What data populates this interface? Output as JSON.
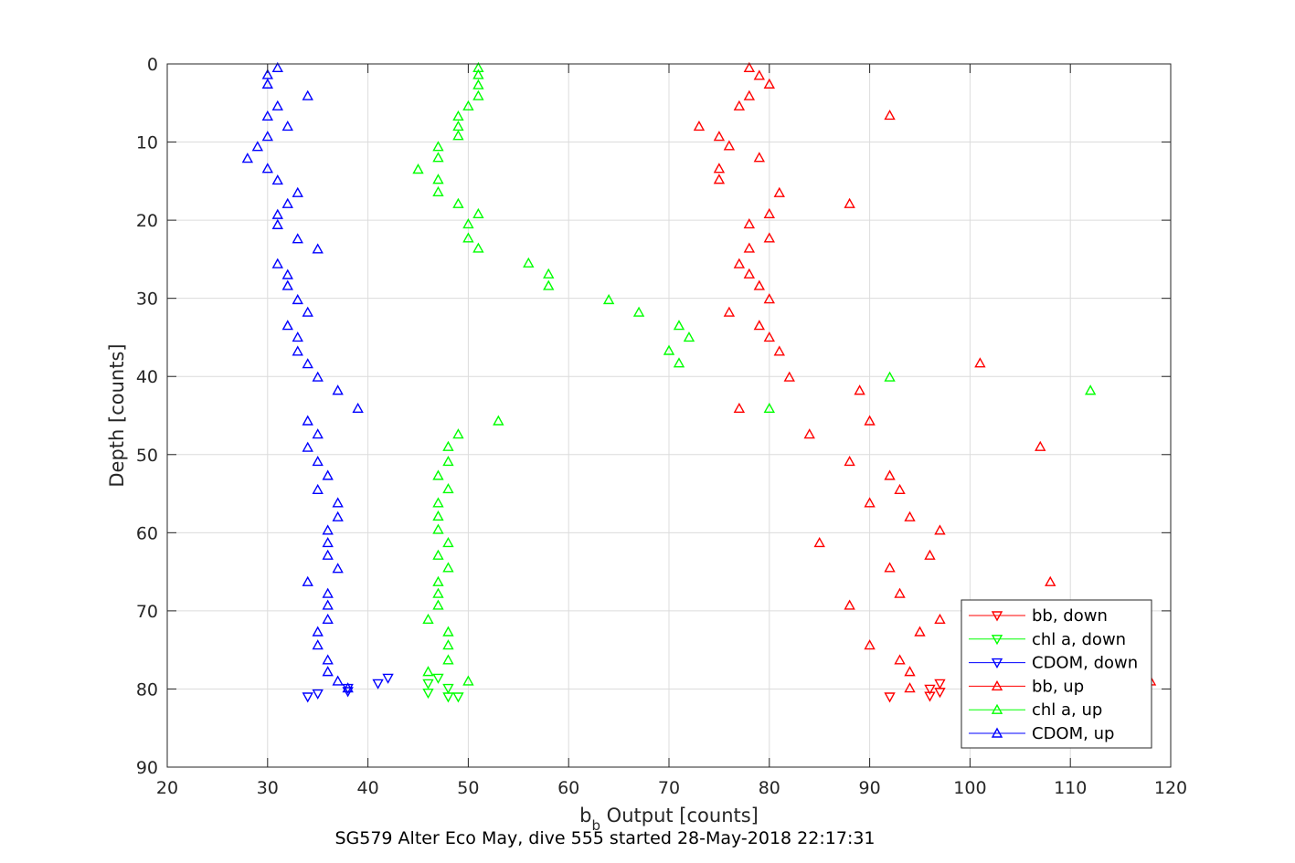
{
  "chart_data": {
    "type": "scatter",
    "xlabel_base": "b",
    "xlabel_sub": "b",
    "xlabel_rest": " Output [counts]",
    "ylabel": "Depth [counts]",
    "caption": "SG579 Alter Eco May, dive 555 started 28-May-2018 22:17:31",
    "xlim": [
      20,
      120
    ],
    "ylim": [
      0,
      90
    ],
    "y_reversed": true,
    "grid": true,
    "legend_position": "bottom-right",
    "x_ticks": [
      "20",
      "30",
      "40",
      "50",
      "60",
      "70",
      "80",
      "90",
      "100",
      "110",
      "120"
    ],
    "y_ticks": [
      "0",
      "10",
      "20",
      "30",
      "40",
      "50",
      "60",
      "70",
      "80",
      "90"
    ],
    "series": [
      {
        "name": "bb, down",
        "color": "#ff0000",
        "marker": "triangle-down",
        "points": [
          [
            96,
            80
          ],
          [
            97,
            79.3
          ],
          [
            97,
            80.4
          ],
          [
            96,
            80.9
          ],
          [
            92,
            81
          ]
        ]
      },
      {
        "name": "chl a, down",
        "color": "#00ff00",
        "marker": "triangle-down",
        "points": [
          [
            47,
            78.6
          ],
          [
            46,
            79.3
          ],
          [
            48,
            79.9
          ],
          [
            46,
            80.5
          ],
          [
            48,
            81
          ],
          [
            49,
            81
          ]
        ]
      },
      {
        "name": "CDOM, down",
        "color": "#0000ff",
        "marker": "triangle-down",
        "points": [
          [
            42,
            78.6
          ],
          [
            41,
            79.3
          ],
          [
            38,
            79.9
          ],
          [
            38,
            80.3
          ],
          [
            35,
            80.6
          ],
          [
            34,
            81
          ]
        ]
      },
      {
        "name": "bb, up",
        "color": "#ff0000",
        "marker": "triangle-up",
        "points": [
          [
            78,
            0.5
          ],
          [
            79,
            1.5
          ],
          [
            80,
            2.6
          ],
          [
            78,
            4.1
          ],
          [
            77,
            5.4
          ],
          [
            92,
            6.6
          ],
          [
            73,
            8
          ],
          [
            75,
            9.3
          ],
          [
            76,
            10.5
          ],
          [
            79,
            12
          ],
          [
            75,
            13.4
          ],
          [
            75,
            14.8
          ],
          [
            81,
            16.5
          ],
          [
            88,
            17.9
          ],
          [
            80,
            19.2
          ],
          [
            78,
            20.5
          ],
          [
            80,
            22.3
          ],
          [
            78,
            23.6
          ],
          [
            77,
            25.6
          ],
          [
            78,
            26.9
          ],
          [
            79,
            28.4
          ],
          [
            80,
            30.1
          ],
          [
            76,
            31.8
          ],
          [
            79,
            33.5
          ],
          [
            80,
            35
          ],
          [
            81,
            36.8
          ],
          [
            101,
            38.3
          ],
          [
            82,
            40.1
          ],
          [
            89,
            41.8
          ],
          [
            77,
            44.1
          ],
          [
            90,
            45.7
          ],
          [
            84,
            47.4
          ],
          [
            107,
            49
          ],
          [
            88,
            50.9
          ],
          [
            92,
            52.7
          ],
          [
            93,
            54.5
          ],
          [
            90,
            56.2
          ],
          [
            94,
            58
          ],
          [
            97,
            59.7
          ],
          [
            85,
            61.3
          ],
          [
            96,
            62.9
          ],
          [
            92,
            64.5
          ],
          [
            108,
            66.3
          ],
          [
            93,
            67.8
          ],
          [
            88,
            69.3
          ],
          [
            97,
            71.1
          ],
          [
            95,
            72.7
          ],
          [
            90,
            74.4
          ],
          [
            93,
            76.3
          ],
          [
            94,
            77.8
          ],
          [
            118,
            79
          ],
          [
            94,
            79.9
          ]
        ]
      },
      {
        "name": "chl a, up",
        "color": "#00ff00",
        "marker": "triangle-up",
        "points": [
          [
            51,
            0.5
          ],
          [
            51,
            1.4
          ],
          [
            51,
            2.7
          ],
          [
            51,
            4.1
          ],
          [
            50,
            5.4
          ],
          [
            49,
            6.7
          ],
          [
            49,
            8
          ],
          [
            49,
            9.2
          ],
          [
            47,
            10.6
          ],
          [
            47,
            12
          ],
          [
            45,
            13.5
          ],
          [
            47,
            14.8
          ],
          [
            47,
            16.4
          ],
          [
            49,
            17.9
          ],
          [
            51,
            19.2
          ],
          [
            50,
            20.5
          ],
          [
            50,
            22.3
          ],
          [
            51,
            23.6
          ],
          [
            56,
            25.5
          ],
          [
            58,
            26.9
          ],
          [
            58,
            28.4
          ],
          [
            64,
            30.2
          ],
          [
            67,
            31.8
          ],
          [
            71,
            33.5
          ],
          [
            72,
            35
          ],
          [
            70,
            36.7
          ],
          [
            71,
            38.3
          ],
          [
            92,
            40.1
          ],
          [
            112,
            41.8
          ],
          [
            80,
            44.1
          ],
          [
            53,
            45.7
          ],
          [
            49,
            47.4
          ],
          [
            48,
            49
          ],
          [
            48,
            50.9
          ],
          [
            47,
            52.7
          ],
          [
            48,
            54.4
          ],
          [
            47,
            56.2
          ],
          [
            47,
            57.9
          ],
          [
            47,
            59.6
          ],
          [
            48,
            61.3
          ],
          [
            47,
            62.9
          ],
          [
            48,
            64.5
          ],
          [
            47,
            66.3
          ],
          [
            47,
            67.8
          ],
          [
            47,
            69.3
          ],
          [
            46,
            71.1
          ],
          [
            48,
            72.7
          ],
          [
            48,
            74.4
          ],
          [
            48,
            76.3
          ],
          [
            46,
            77.8
          ],
          [
            50,
            79
          ]
        ]
      },
      {
        "name": "CDOM, up",
        "color": "#0000ff",
        "marker": "triangle-up",
        "points": [
          [
            31,
            0.5
          ],
          [
            30,
            1.4
          ],
          [
            30,
            2.6
          ],
          [
            34,
            4.1
          ],
          [
            31,
            5.4
          ],
          [
            30,
            6.7
          ],
          [
            32,
            8
          ],
          [
            30,
            9.3
          ],
          [
            29,
            10.6
          ],
          [
            28,
            12.1
          ],
          [
            30,
            13.4
          ],
          [
            31,
            14.9
          ],
          [
            33,
            16.5
          ],
          [
            32,
            17.9
          ],
          [
            31,
            19.3
          ],
          [
            31,
            20.6
          ],
          [
            33,
            22.4
          ],
          [
            35,
            23.7
          ],
          [
            31,
            25.6
          ],
          [
            32,
            27
          ],
          [
            32,
            28.4
          ],
          [
            33,
            30.2
          ],
          [
            34,
            31.8
          ],
          [
            32,
            33.5
          ],
          [
            33,
            35
          ],
          [
            33,
            36.8
          ],
          [
            34,
            38.4
          ],
          [
            35,
            40.1
          ],
          [
            37,
            41.8
          ],
          [
            39,
            44.1
          ],
          [
            34,
            45.7
          ],
          [
            35,
            47.4
          ],
          [
            34,
            49.1
          ],
          [
            35,
            50.9
          ],
          [
            36,
            52.7
          ],
          [
            35,
            54.5
          ],
          [
            37,
            56.2
          ],
          [
            37,
            58
          ],
          [
            36,
            59.7
          ],
          [
            36,
            61.3
          ],
          [
            36,
            62.9
          ],
          [
            37,
            64.6
          ],
          [
            34,
            66.3
          ],
          [
            36,
            67.8
          ],
          [
            36,
            69.3
          ],
          [
            36,
            71.1
          ],
          [
            35,
            72.7
          ],
          [
            35,
            74.4
          ],
          [
            36,
            76.3
          ],
          [
            36,
            77.8
          ],
          [
            37,
            79
          ],
          [
            38,
            79.9
          ]
        ]
      }
    ]
  }
}
